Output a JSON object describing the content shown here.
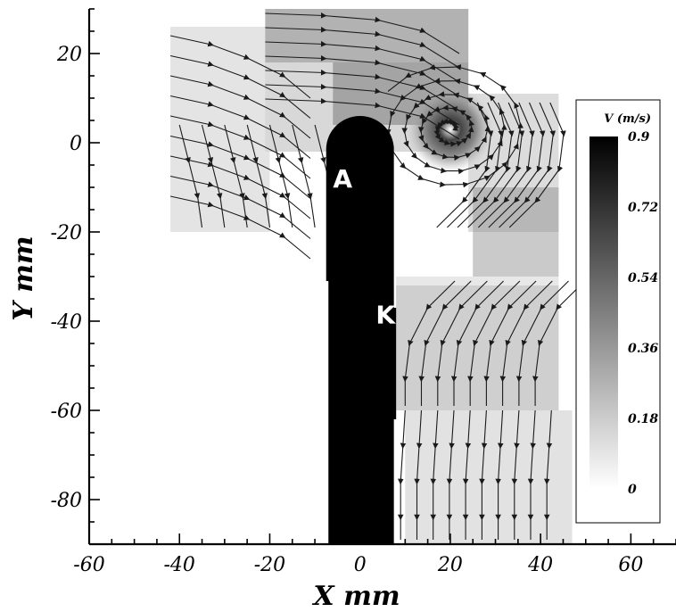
{
  "chart_data": {
    "type": "heatmap",
    "subtype": "velocity magnitude contour with streamlines",
    "title": "",
    "xlabel": "X mm",
    "ylabel": "Y mm",
    "xlim": [
      -60,
      70
    ],
    "ylim": [
      -90,
      30
    ],
    "x_ticks": [
      -60,
      -40,
      -20,
      0,
      20,
      40,
      60
    ],
    "y_ticks": [
      20,
      0,
      -20,
      -40,
      -60,
      -80
    ],
    "colorbar": {
      "title": "V (m/s)",
      "range": [
        0,
        0.9
      ],
      "ticks": [
        "0.9",
        "0.72",
        "0.54",
        "0.36",
        "0.18",
        "0"
      ],
      "colors": [
        "#000000",
        "#ffffff"
      ],
      "placement": "right"
    },
    "regions": [
      {
        "label": "A",
        "x": -6,
        "y": -10
      },
      {
        "label": "K",
        "x": 3.5,
        "y": -40.5
      }
    ],
    "vortex_center": {
      "x": 20,
      "y": 3
    },
    "grid": false,
    "background_color": "#ffffff",
    "body_color": "#000000"
  }
}
